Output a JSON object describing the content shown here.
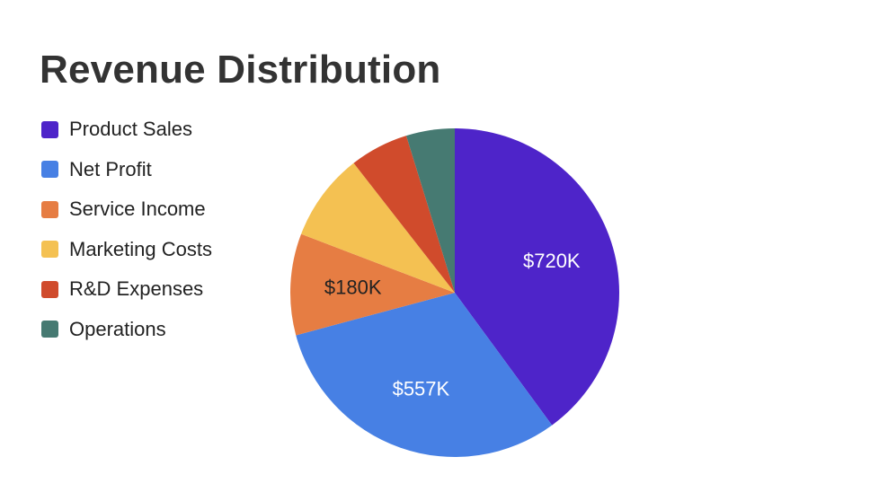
{
  "chart_data": {
    "type": "pie",
    "title": "Revenue Distribution",
    "legend_position": "left",
    "start_angle_deg": 0,
    "direction": "clockwise",
    "slices": [
      {
        "name": "Product Sales",
        "value": 720,
        "color": "#4e24c9",
        "label": "$720K",
        "label_color": "#ffffff"
      },
      {
        "name": "Net Profit",
        "value": 557,
        "color": "#4780e4",
        "label": "$557K",
        "label_color": "#ffffff"
      },
      {
        "name": "Service Income",
        "value": 180,
        "color": "#e67d43",
        "label": "$180K",
        "label_color": "#222222"
      },
      {
        "name": "Marketing Costs",
        "value": 156,
        "color": "#f4c152",
        "label": "",
        "label_color": "#222222"
      },
      {
        "name": "R&D Expenses",
        "value": 104,
        "color": "#d04b2c",
        "label": "",
        "label_color": "#ffffff"
      },
      {
        "name": "Operations",
        "value": 86,
        "color": "#467a72",
        "label": "",
        "label_color": "#ffffff"
      }
    ]
  }
}
